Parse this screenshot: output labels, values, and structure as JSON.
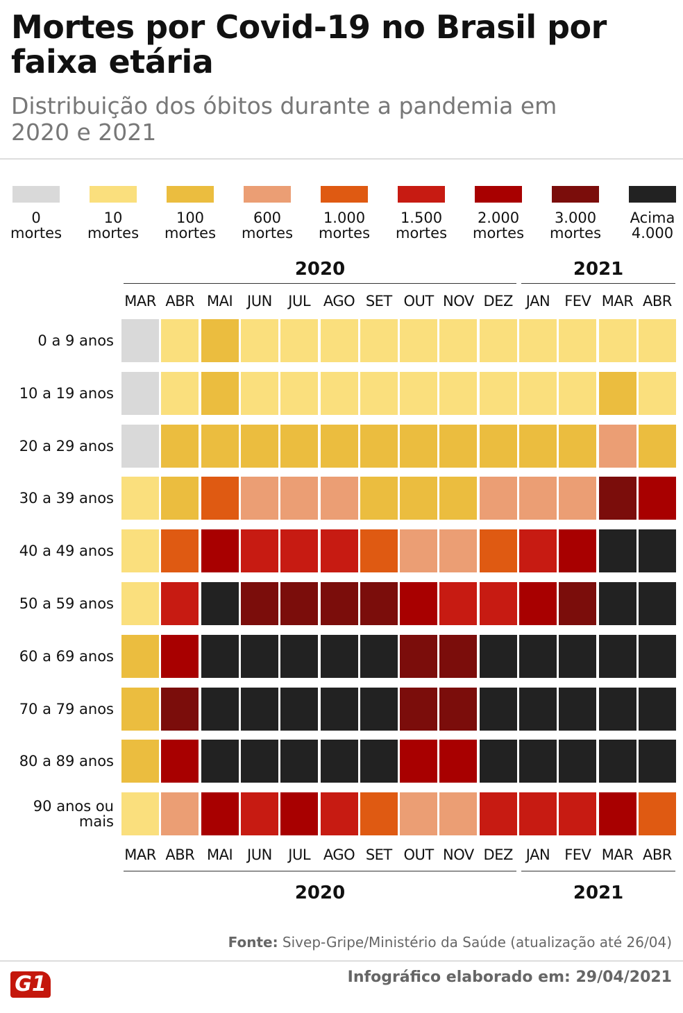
{
  "chart_data": {
    "type": "heatmap",
    "title": "Mortes por Covid-19 no Brasil por faixa etária",
    "subtitle": "Distribuição dos óbitos durante a pandemia em 2020 e 2021",
    "legend": [
      {
        "value": 0,
        "label": "0 mortes",
        "color": "#d9d9d9"
      },
      {
        "value": 10,
        "label": "10 mortes",
        "color": "#fadf7d"
      },
      {
        "value": 100,
        "label": "100 mortes",
        "color": "#ebbd3f"
      },
      {
        "value": 600,
        "label": "600 mortes",
        "color": "#eb9e74"
      },
      {
        "value": 1000,
        "label": "1.000 mortes",
        "color": "#df5a12"
      },
      {
        "value": 1500,
        "label": "1.500 mortes",
        "color": "#c71b12"
      },
      {
        "value": 2000,
        "label": "2.000 mortes",
        "color": "#a80000"
      },
      {
        "value": 3000,
        "label": "3.000 mortes",
        "color": "#7b0d0b"
      },
      {
        "value": 4000,
        "label": "Acima 4.000",
        "color": "#222222"
      }
    ],
    "periods": [
      {
        "year": "2020",
        "months": [
          "MAR",
          "ABR",
          "MAI",
          "JUN",
          "JUL",
          "AGO",
          "SET",
          "OUT",
          "NOV",
          "DEZ"
        ]
      },
      {
        "year": "2021",
        "months": [
          "JAN",
          "FEV",
          "MAR",
          "ABR"
        ]
      }
    ],
    "series": [
      {
        "name": "0 a 9 anos",
        "values": [
          0,
          10,
          100,
          10,
          10,
          10,
          10,
          10,
          10,
          10,
          10,
          10,
          10,
          10
        ]
      },
      {
        "name": "10 a 19 anos",
        "values": [
          0,
          10,
          100,
          10,
          10,
          10,
          10,
          10,
          10,
          10,
          10,
          10,
          100,
          10
        ]
      },
      {
        "name": "20 a 29 anos",
        "values": [
          0,
          100,
          100,
          100,
          100,
          100,
          100,
          100,
          100,
          100,
          100,
          100,
          600,
          100
        ]
      },
      {
        "name": "30 a 39 anos",
        "values": [
          10,
          100,
          1000,
          600,
          600,
          600,
          100,
          100,
          100,
          600,
          600,
          600,
          3000,
          2000
        ]
      },
      {
        "name": "40 a 49 anos",
        "values": [
          10,
          1000,
          2000,
          1500,
          1500,
          1500,
          1000,
          600,
          600,
          1000,
          1500,
          2000,
          4000,
          4000
        ]
      },
      {
        "name": "50 a 59 anos",
        "values": [
          10,
          1500,
          4000,
          3000,
          3000,
          3000,
          3000,
          2000,
          1500,
          1500,
          2000,
          3000,
          4000,
          4000
        ]
      },
      {
        "name": "60 a 69 anos",
        "values": [
          100,
          2000,
          4000,
          4000,
          4000,
          4000,
          4000,
          3000,
          3000,
          4000,
          4000,
          4000,
          4000,
          4000
        ]
      },
      {
        "name": "70 a 79 anos",
        "values": [
          100,
          3000,
          4000,
          4000,
          4000,
          4000,
          4000,
          3000,
          3000,
          4000,
          4000,
          4000,
          4000,
          4000
        ]
      },
      {
        "name": "80 a 89 anos",
        "values": [
          100,
          2000,
          4000,
          4000,
          4000,
          4000,
          4000,
          2000,
          2000,
          4000,
          4000,
          4000,
          4000,
          4000
        ]
      },
      {
        "name": "90 anos ou mais",
        "values": [
          10,
          600,
          2000,
          1500,
          2000,
          1500,
          1000,
          600,
          600,
          1500,
          1500,
          1500,
          2000,
          1000
        ]
      }
    ],
    "source": {
      "label": "Fonte:",
      "text": "Sivep-Gripe/Ministério da Saúde (atualização até 26/04)"
    },
    "credit": "Infográfico elaborado em: 29/04/2021",
    "logo": "G1"
  }
}
